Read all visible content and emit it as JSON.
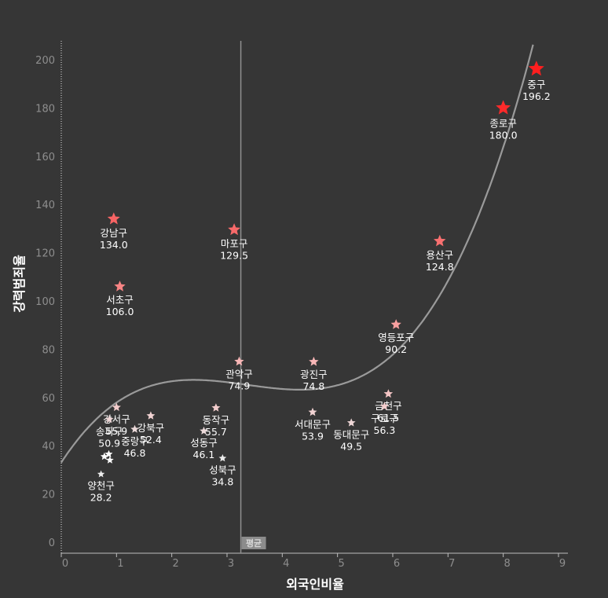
{
  "chart_data": {
    "type": "scatter",
    "xlabel": "외국인비율",
    "ylabel": "강력범죄율",
    "xlim": [
      0,
      9
    ],
    "ylim": [
      0,
      210
    ],
    "x_ticks": [
      "0",
      "1",
      "2",
      "3",
      "4",
      "5",
      "6",
      "7",
      "8",
      "9"
    ],
    "y_ticks": [
      "0",
      "20",
      "40",
      "60",
      "80",
      "100",
      "120",
      "140",
      "160",
      "180",
      "200"
    ],
    "mean_line": {
      "label": "평균",
      "x": 3.25
    },
    "trend_line": {
      "type": "polynomial",
      "degree": 3
    },
    "points": [
      {
        "name": "중구",
        "value_label": "196.2",
        "x": 8.6,
        "y": 196.2,
        "color": "#ff1f1f",
        "labeled": true
      },
      {
        "name": "종로구",
        "value_label": "180.0",
        "x": 8.0,
        "y": 180.0,
        "color": "#ff2a2a",
        "labeled": true
      },
      {
        "name": "강남구",
        "value_label": "134.0",
        "x": 0.95,
        "y": 134.0,
        "color": "#f86464",
        "labeled": true
      },
      {
        "name": "마포구",
        "value_label": "129.5",
        "x": 3.13,
        "y": 129.5,
        "color": "#f86a6a",
        "labeled": true
      },
      {
        "name": "용산구",
        "value_label": "124.8",
        "x": 6.85,
        "y": 124.8,
        "color": "#f87070",
        "labeled": true
      },
      {
        "name": "서초구",
        "value_label": "106.0",
        "x": 1.06,
        "y": 106.0,
        "color": "#f88484",
        "labeled": true
      },
      {
        "name": "영등포구",
        "value_label": "90.2",
        "x": 6.06,
        "y": 90.2,
        "color": "#f8a0a0",
        "labeled": true
      },
      {
        "name": "관악구",
        "value_label": "74.9",
        "x": 3.22,
        "y": 74.9,
        "color": "#f8b6b6",
        "labeled": true
      },
      {
        "name": "광진구",
        "value_label": "74.8",
        "x": 4.57,
        "y": 74.8,
        "color": "#f8b6b6",
        "labeled": true
      },
      {
        "name": "금천구",
        "value_label": "61.5",
        "x": 5.92,
        "y": 61.5,
        "color": "#f4c4c4",
        "labeled": true
      },
      {
        "name": "구로구",
        "value_label": "56.3",
        "x": 5.85,
        "y": 56.3,
        "color": "#f2cccc",
        "labeled": true
      },
      {
        "name": "강서구",
        "value_label": "55.9",
        "x": 1.0,
        "y": 55.9,
        "color": "#f2cccc",
        "labeled": true
      },
      {
        "name": "동작구",
        "value_label": "55.7",
        "x": 2.8,
        "y": 55.7,
        "color": "#f2cccc",
        "labeled": true
      },
      {
        "name": "서대문구",
        "value_label": "53.9",
        "x": 4.55,
        "y": 53.9,
        "color": "#f0d2d2",
        "labeled": true
      },
      {
        "name": "강북구",
        "value_label": "52.4",
        "x": 1.62,
        "y": 52.4,
        "color": "#f0d2d2",
        "labeled": true
      },
      {
        "name": "송파구",
        "value_label": "50.9",
        "x": 0.87,
        "y": 50.9,
        "color": "#eed6d6",
        "labeled": true
      },
      {
        "name": "동대문구",
        "value_label": "49.5",
        "x": 5.25,
        "y": 49.5,
        "color": "#eed6d6",
        "labeled": true
      },
      {
        "name": "중랑구",
        "value_label": "46.8",
        "x": 1.33,
        "y": 46.8,
        "color": "#ecdada",
        "labeled": true
      },
      {
        "name": "성동구",
        "value_label": "46.1",
        "x": 2.58,
        "y": 46.1,
        "color": "#ecdada",
        "labeled": true
      },
      {
        "name": "성북구",
        "value_label": "34.8",
        "x": 2.92,
        "y": 34.8,
        "color": "#ececec",
        "labeled": true
      },
      {
        "name": "양천구",
        "value_label": "28.2",
        "x": 0.72,
        "y": 28.2,
        "color": "#ececec",
        "labeled": true
      },
      {
        "name": "",
        "value_label": "",
        "x": 0.78,
        "y": 35.5,
        "color": "#ffffff",
        "labeled": false
      },
      {
        "name": "",
        "value_label": "",
        "x": 0.86,
        "y": 36.5,
        "color": "#ffffff",
        "labeled": false
      },
      {
        "name": "",
        "value_label": "",
        "x": 0.88,
        "y": 34.0,
        "color": "#ffffff",
        "labeled": false
      }
    ]
  }
}
